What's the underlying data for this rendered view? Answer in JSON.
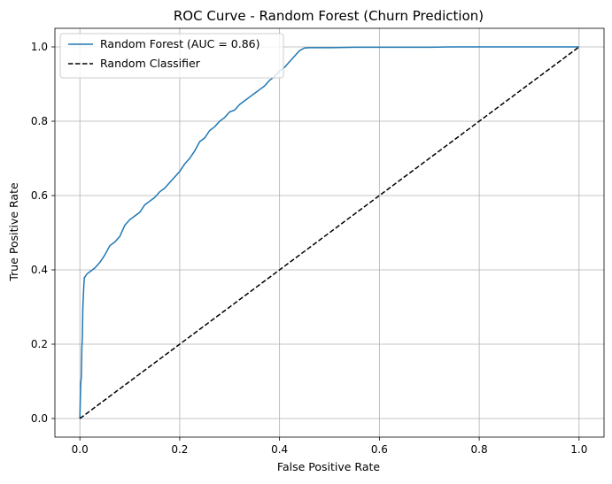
{
  "chart_data": {
    "type": "line",
    "title": "ROC Curve - Random Forest (Churn Prediction)",
    "xlabel": "False Positive Rate",
    "ylabel": "True Positive Rate",
    "xlim": [
      -0.05,
      1.05
    ],
    "ylim": [
      -0.05,
      1.05
    ],
    "xticks": [
      "0.0",
      "0.2",
      "0.4",
      "0.6",
      "0.8",
      "1.0"
    ],
    "yticks": [
      "0.0",
      "0.2",
      "0.4",
      "0.6",
      "0.8",
      "1.0"
    ],
    "grid": true,
    "legend_position": "top-left",
    "series": [
      {
        "name": "Random Forest (AUC = 0.86)",
        "color": "#1f77b4",
        "style": "solid",
        "x": [
          0.0,
          0.001,
          0.002,
          0.003,
          0.004,
          0.005,
          0.006,
          0.007,
          0.008,
          0.009,
          0.01,
          0.012,
          0.015,
          0.02,
          0.025,
          0.03,
          0.04,
          0.05,
          0.06,
          0.07,
          0.08,
          0.09,
          0.1,
          0.11,
          0.12,
          0.13,
          0.14,
          0.15,
          0.16,
          0.17,
          0.18,
          0.19,
          0.2,
          0.21,
          0.22,
          0.23,
          0.24,
          0.25,
          0.26,
          0.27,
          0.28,
          0.29,
          0.3,
          0.31,
          0.32,
          0.33,
          0.34,
          0.35,
          0.36,
          0.37,
          0.38,
          0.39,
          0.4,
          0.41,
          0.42,
          0.43,
          0.44,
          0.45,
          0.46,
          0.5,
          0.55,
          0.6,
          0.7,
          0.75,
          0.8,
          0.9,
          1.0
        ],
        "y": [
          0.0,
          0.06,
          0.1,
          0.11,
          0.19,
          0.22,
          0.3,
          0.33,
          0.36,
          0.38,
          0.38,
          0.385,
          0.39,
          0.395,
          0.4,
          0.405,
          0.42,
          0.44,
          0.465,
          0.475,
          0.49,
          0.52,
          0.535,
          0.545,
          0.555,
          0.575,
          0.585,
          0.595,
          0.61,
          0.62,
          0.635,
          0.65,
          0.665,
          0.685,
          0.7,
          0.72,
          0.745,
          0.755,
          0.775,
          0.785,
          0.8,
          0.81,
          0.825,
          0.83,
          0.845,
          0.855,
          0.865,
          0.875,
          0.885,
          0.895,
          0.91,
          0.92,
          0.935,
          0.945,
          0.96,
          0.975,
          0.99,
          0.997,
          0.998,
          0.998,
          0.999,
          0.999,
          0.999,
          1.0,
          1.0,
          1.0,
          1.0
        ]
      },
      {
        "name": "Random Classifier",
        "color": "#000000",
        "style": "dashed",
        "x": [
          0,
          1
        ],
        "y": [
          0,
          1
        ]
      }
    ]
  }
}
